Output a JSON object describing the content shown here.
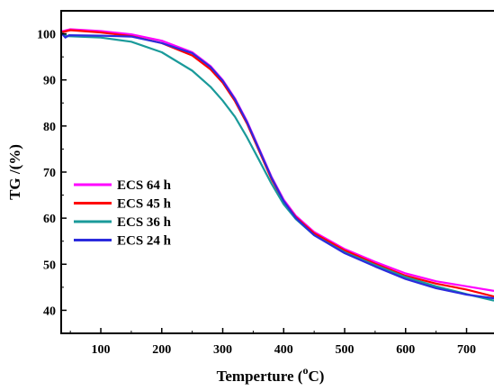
{
  "chart_data": {
    "type": "line",
    "xlabel_main": "Temperture (",
    "xlabel_sup": "o",
    "xlabel_end": "C)",
    "ylabel": "TG /(%)",
    "xlim": [
      35,
      745
    ],
    "ylim": [
      35,
      105
    ],
    "x_ticks": [
      100,
      200,
      300,
      400,
      500,
      600,
      700
    ],
    "y_ticks": [
      40,
      50,
      60,
      70,
      80,
      90,
      100
    ],
    "x_tick_labels": [
      "100",
      "200",
      "300",
      "400",
      "500",
      "600",
      "700"
    ],
    "y_tick_labels": [
      "40",
      "50",
      "60",
      "70",
      "80",
      "90",
      "100"
    ],
    "legend_position": "middle-left",
    "series": [
      {
        "name": "ECS 64 h",
        "color": "#ff00ff",
        "x": [
          35,
          50,
          100,
          150,
          200,
          250,
          280,
          300,
          320,
          340,
          360,
          380,
          400,
          420,
          450,
          500,
          550,
          600,
          650,
          700,
          745
        ],
        "y": [
          100.5,
          101.0,
          100.6,
          99.9,
          98.5,
          96.0,
          93.0,
          90.0,
          86.0,
          81.0,
          75.0,
          69.0,
          64.0,
          60.5,
          57.0,
          53.3,
          50.5,
          48.0,
          46.3,
          45.2,
          44.2
        ]
      },
      {
        "name": "ECS 45 h",
        "color": "#ff0000",
        "x": [
          35,
          50,
          100,
          150,
          200,
          250,
          280,
          300,
          320,
          340,
          360,
          380,
          400,
          420,
          450,
          500,
          550,
          600,
          650,
          700,
          745
        ],
        "y": [
          100.3,
          100.8,
          100.3,
          99.5,
          98.0,
          95.3,
          92.3,
          89.4,
          85.4,
          80.5,
          74.5,
          68.5,
          63.6,
          60.2,
          56.7,
          53.0,
          50.1,
          47.5,
          45.8,
          44.5,
          43.0
        ]
      },
      {
        "name": "ECS 36 h",
        "color": "#1a9a9a",
        "x": [
          35,
          45,
          100,
          150,
          200,
          250,
          280,
          300,
          320,
          340,
          360,
          380,
          400,
          420,
          450,
          500,
          550,
          600,
          650,
          700,
          745
        ],
        "y": [
          100.2,
          99.5,
          99.2,
          98.3,
          96.0,
          92.0,
          88.5,
          85.5,
          82.0,
          77.5,
          72.5,
          67.5,
          63.0,
          59.8,
          56.3,
          52.6,
          49.8,
          47.2,
          45.2,
          43.5,
          42.1
        ]
      },
      {
        "name": "ECS 24 h",
        "color": "#2b2bdd",
        "x": [
          35,
          42,
          48,
          100,
          150,
          200,
          250,
          280,
          300,
          320,
          340,
          360,
          380,
          400,
          420,
          450,
          500,
          550,
          600,
          650,
          700,
          745
        ],
        "y": [
          100.2,
          99.2,
          99.7,
          99.6,
          99.4,
          98.0,
          95.8,
          92.8,
          89.8,
          85.8,
          80.8,
          74.8,
          68.8,
          63.7,
          60.0,
          56.3,
          52.4,
          49.5,
          46.8,
          44.8,
          43.4,
          42.6
        ]
      }
    ]
  }
}
